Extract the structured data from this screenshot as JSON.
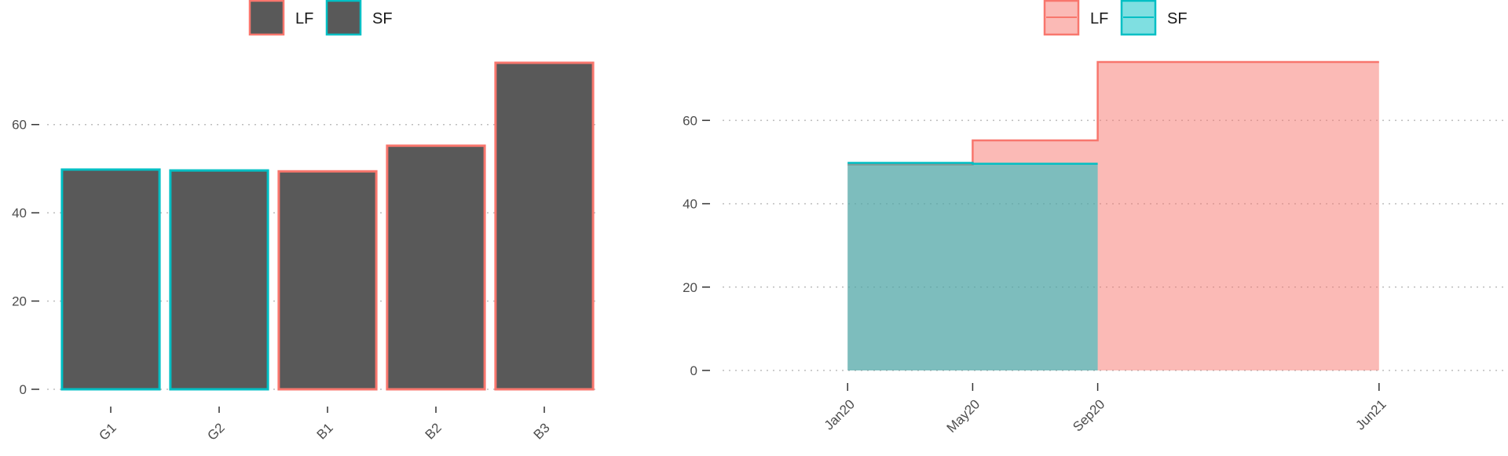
{
  "colors": {
    "LF": "#F8766D",
    "SF": "#00BFC4",
    "bar_fill": "#595959",
    "LF_area": "#F8766D",
    "SF_area": "#00BFC4",
    "grid": "#bdbdbd"
  },
  "chart_data": [
    {
      "type": "bar",
      "legend": [
        {
          "name": "LF",
          "key": "LF"
        },
        {
          "name": "SF",
          "key": "SF"
        }
      ],
      "legend_position": "top",
      "categories": [
        "G1",
        "G2",
        "B1",
        "B2",
        "B3"
      ],
      "values": [
        49.8,
        49.6,
        49.4,
        55.2,
        74.0
      ],
      "groups": [
        "SF",
        "SF",
        "LF",
        "LF",
        "LF"
      ],
      "ylim": [
        0,
        74
      ],
      "yticks": [
        0,
        20,
        40,
        60
      ],
      "ytick_labels": [
        "0",
        "20",
        "40",
        "60"
      ],
      "grid": "horizontal dotted",
      "title": "",
      "xlabel": "",
      "ylabel": ""
    },
    {
      "type": "area",
      "step": true,
      "legend": [
        {
          "name": "LF",
          "key": "LF"
        },
        {
          "name": "SF",
          "key": "SF"
        }
      ],
      "legend_position": "top",
      "x_ticks": [
        "2020-01",
        "2020-05",
        "2020-09",
        "2021-06"
      ],
      "xtick_labels": [
        "Jan20",
        "May20",
        "Sep20",
        "Jun21"
      ],
      "xlim": [
        "2019-09",
        "2021-10"
      ],
      "series": [
        {
          "name": "LF",
          "key": "LF",
          "x": [
            "2020-01",
            "2020-05",
            "2020-09",
            "2021-06"
          ],
          "values": [
            49.4,
            55.2,
            74.0,
            74.0
          ]
        },
        {
          "name": "SF",
          "key": "SF",
          "x": [
            "2020-01",
            "2020-05",
            "2020-09"
          ],
          "values": [
            49.8,
            49.6,
            49.6
          ]
        }
      ],
      "ylim": [
        0,
        74
      ],
      "yticks": [
        0,
        20,
        40,
        60
      ],
      "ytick_labels": [
        "0",
        "20",
        "40",
        "60"
      ],
      "grid": "horizontal dotted",
      "title": "",
      "xlabel": "",
      "ylabel": ""
    }
  ]
}
